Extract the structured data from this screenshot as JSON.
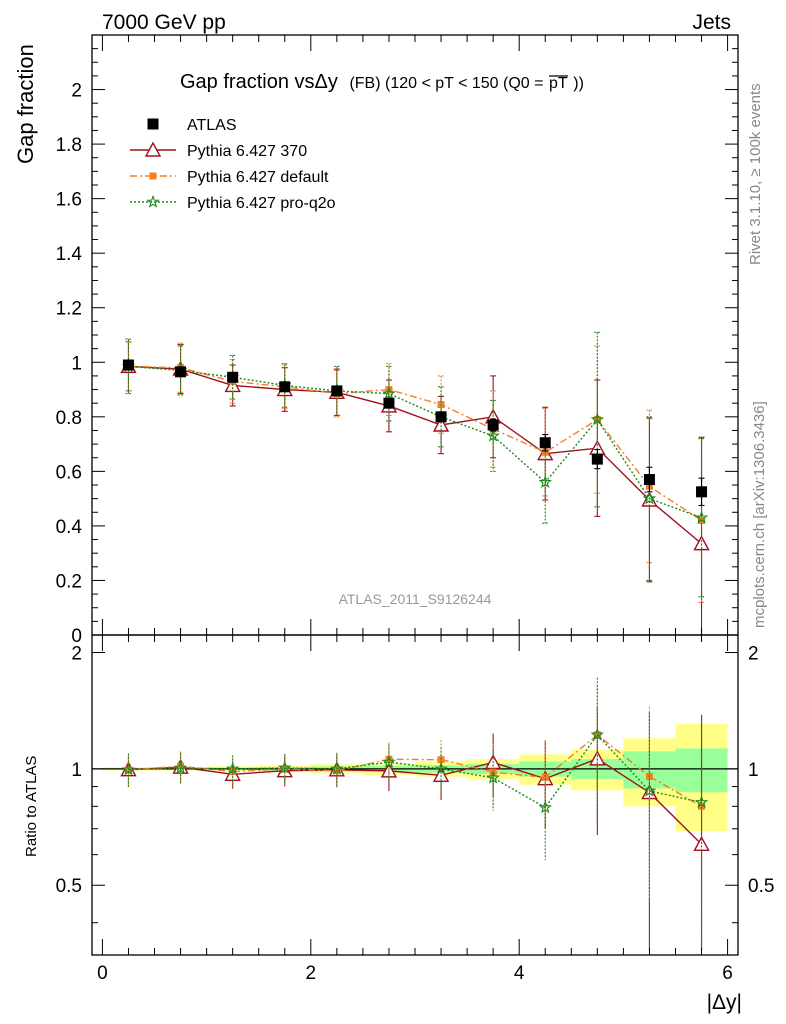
{
  "header": {
    "left": "7000 GeV pp",
    "right": "Jets"
  },
  "side_labels": {
    "rivet": "Rivet 3.1.10, ≥ 100k events",
    "mcplots": "mcplots.cern.ch [arXiv:1306.3436]"
  },
  "chart_data": {
    "type": "scatter",
    "title_main": "Gap fraction vsΔy",
    "title_detail": "(FB) (120 < pT < 150 (Q0 =",
    "title_overline": "pT",
    "title_close": "))",
    "ylabel": "Gap fraction",
    "ratio_ylabel": "Ratio to ATLAS",
    "xlabel": "|Δy|",
    "watermark": "ATLAS_2011_S9126244",
    "xlim": [
      -0.1,
      6.1
    ],
    "ylim": [
      0,
      2.2
    ],
    "ratio_ylim": [
      0.33,
      2.22
    ],
    "ratio_log_scale": true,
    "main_yticks": [
      "0",
      "0.2",
      "0.4",
      "0.6",
      "0.8",
      "1",
      "1.2",
      "1.4",
      "1.6",
      "1.8",
      "2"
    ],
    "xticks": [
      "0",
      "2",
      "4",
      "6"
    ],
    "ratio_yticks": [
      "0.5",
      "1",
      "2"
    ],
    "x": [
      0.25,
      0.75,
      1.25,
      1.75,
      2.25,
      2.75,
      3.25,
      3.75,
      4.25,
      4.75,
      5.25,
      5.75
    ],
    "data_band": {
      "inner": [
        0.005,
        0.005,
        0.008,
        0.01,
        0.015,
        0.018,
        0.022,
        0.03,
        0.045,
        0.06,
        0.11,
        0.13
      ],
      "outer": [
        0.01,
        0.01,
        0.015,
        0.02,
        0.028,
        0.035,
        0.045,
        0.06,
        0.09,
        0.12,
        0.2,
        0.31
      ]
    },
    "series": [
      {
        "name": "ATLAS",
        "color": "#000000",
        "marker": "square",
        "line": "none",
        "values": [
          0.99,
          0.965,
          0.945,
          0.91,
          0.895,
          0.85,
          0.8,
          0.77,
          0.705,
          0.645,
          0.57,
          0.525
        ],
        "errors": [
          0.01,
          0.01,
          0.01,
          0.01,
          0.012,
          0.015,
          0.018,
          0.022,
          0.03,
          0.035,
          0.045,
          0.05
        ]
      },
      {
        "name": "Pythia 6.427 370",
        "color": "#a01020",
        "marker": "triangle-open",
        "line": "solid",
        "values": [
          0.985,
          0.975,
          0.915,
          0.9,
          0.89,
          0.84,
          0.77,
          0.8,
          0.665,
          0.685,
          0.495,
          0.335
        ],
        "errors": [
          0.09,
          0.09,
          0.075,
          0.08,
          0.085,
          0.095,
          0.105,
          0.15,
          0.17,
          0.25,
          0.3,
          0.39
        ]
      },
      {
        "name": "Pythia 6.427 default",
        "color": "#f0802a",
        "marker": "square-small",
        "line": "dashdot",
        "values": [
          0.985,
          0.98,
          0.93,
          0.91,
          0.885,
          0.9,
          0.845,
          0.755,
          0.67,
          0.79,
          0.545,
          0.42
        ],
        "errors": [
          0.09,
          0.09,
          0.08,
          0.08,
          0.085,
          0.095,
          0.105,
          0.14,
          0.16,
          0.27,
          0.28,
          0.3
        ]
      },
      {
        "name": "Pythia 6.427 pro-q2o",
        "color": "#1a8a1a",
        "marker": "star",
        "line": "dotted",
        "values": [
          0.985,
          0.97,
          0.945,
          0.915,
          0.895,
          0.885,
          0.8,
          0.73,
          0.56,
          0.79,
          0.5,
          0.43
        ],
        "errors": [
          0.1,
          0.09,
          0.08,
          0.08,
          0.09,
          0.1,
          0.11,
          0.13,
          0.15,
          0.32,
          0.3,
          0.29
        ]
      }
    ]
  }
}
